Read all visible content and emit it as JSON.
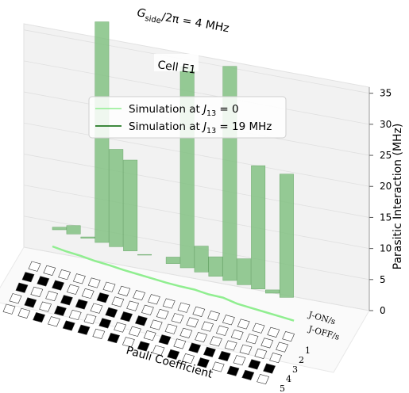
{
  "chart_data": {
    "type": "bar",
    "title": {
      "main": "G",
      "sub": "side",
      "rest": "/2π = 4 MHz"
    },
    "annotation": "Cell E1",
    "zlabel": "Parasitic Interaction (MHz)",
    "xlabel": "Pauli Coefficient",
    "zlim": [
      0,
      37
    ],
    "zticks": [
      0,
      5,
      10,
      15,
      20,
      25,
      30,
      35
    ],
    "row_labels": [
      "1",
      "2",
      "3",
      "4",
      "5"
    ],
    "column_end_labels": [
      "J-ON/s",
      "J-OFF/s"
    ],
    "legend": [
      {
        "label_prefix": "Simulation at ",
        "J": "J",
        "sub": "13",
        "label_suffix": " = 0",
        "color": "#90ee90"
      },
      {
        "label_prefix": "Simulation at ",
        "J": "J",
        "sub": "13",
        "label_suffix": " = 19 MHz",
        "color": "#006400"
      }
    ],
    "series": [
      {
        "name": "Simulation at J13 = 19 MHz",
        "values": [
          0.4,
          1.3,
          0.2,
          34.0,
          15.0,
          14.0,
          0.1,
          0.0,
          1.0,
          31.0,
          4.0,
          3.0,
          33.0,
          4.0,
          19.0,
          0.5,
          19.0,
          0.0
        ],
        "color": "#7fbf7f"
      },
      {
        "name": "Simulation at J13 = 0",
        "values": [
          0.5,
          0.3,
          0.3,
          0.1,
          0.1,
          0.0,
          0.0,
          0.0,
          0.0,
          0.1,
          0.3,
          0.2,
          0.4,
          0.0,
          0.0,
          0.0,
          0.0,
          0.0
        ],
        "color": "#90ee90"
      }
    ],
    "pauli_matrix": [
      [
        0,
        0,
        0,
        0,
        0,
        0,
        0,
        0,
        0,
        0,
        0,
        0,
        0,
        0,
        0,
        0,
        0,
        0
      ],
      [
        1,
        1,
        1,
        0,
        0,
        1,
        0,
        0,
        0,
        0,
        0,
        0,
        0,
        0,
        0,
        0,
        0,
        0
      ],
      [
        1,
        0,
        0,
        1,
        1,
        0,
        1,
        1,
        1,
        0,
        0,
        0,
        0,
        0,
        0,
        0,
        0,
        0
      ],
      [
        0,
        1,
        0,
        1,
        0,
        0,
        1,
        0,
        0,
        0,
        1,
        0,
        1,
        1,
        1,
        0,
        1,
        1
      ],
      [
        0,
        0,
        1,
        0,
        1,
        1,
        0,
        1,
        0,
        1,
        0,
        1,
        0,
        1,
        0,
        1,
        1,
        0
      ]
    ]
  }
}
